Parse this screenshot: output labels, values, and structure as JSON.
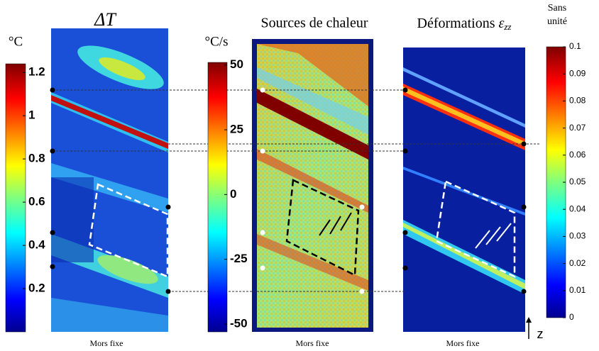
{
  "panels": [
    {
      "title": "ΔT",
      "unit": "°C",
      "footer": "Mors fixe",
      "colorbar": {
        "lim": [
          0,
          1.24
        ],
        "ticks": [
          0.2,
          0.4,
          0.6,
          0.8,
          1,
          1.2
        ]
      }
    },
    {
      "title": "Sources de chaleur",
      "unit": "°C/s",
      "footer": "Mors fixe",
      "colorbar": {
        "lim": [
          -53,
          51
        ],
        "ticks": [
          -50,
          -25,
          0,
          25,
          50
        ]
      }
    },
    {
      "title": "Déformations",
      "symbol": "ε",
      "subscript": "zz",
      "unit": "Sans unité",
      "footer": "Mors fixe",
      "colorbar": {
        "lim": [
          0,
          0.1
        ],
        "ticks": [
          0,
          0.01,
          0.02,
          0.03,
          0.04,
          0.05,
          0.06,
          0.07,
          0.08,
          0.09,
          0.1
        ]
      }
    }
  ],
  "axis_label": "z"
}
